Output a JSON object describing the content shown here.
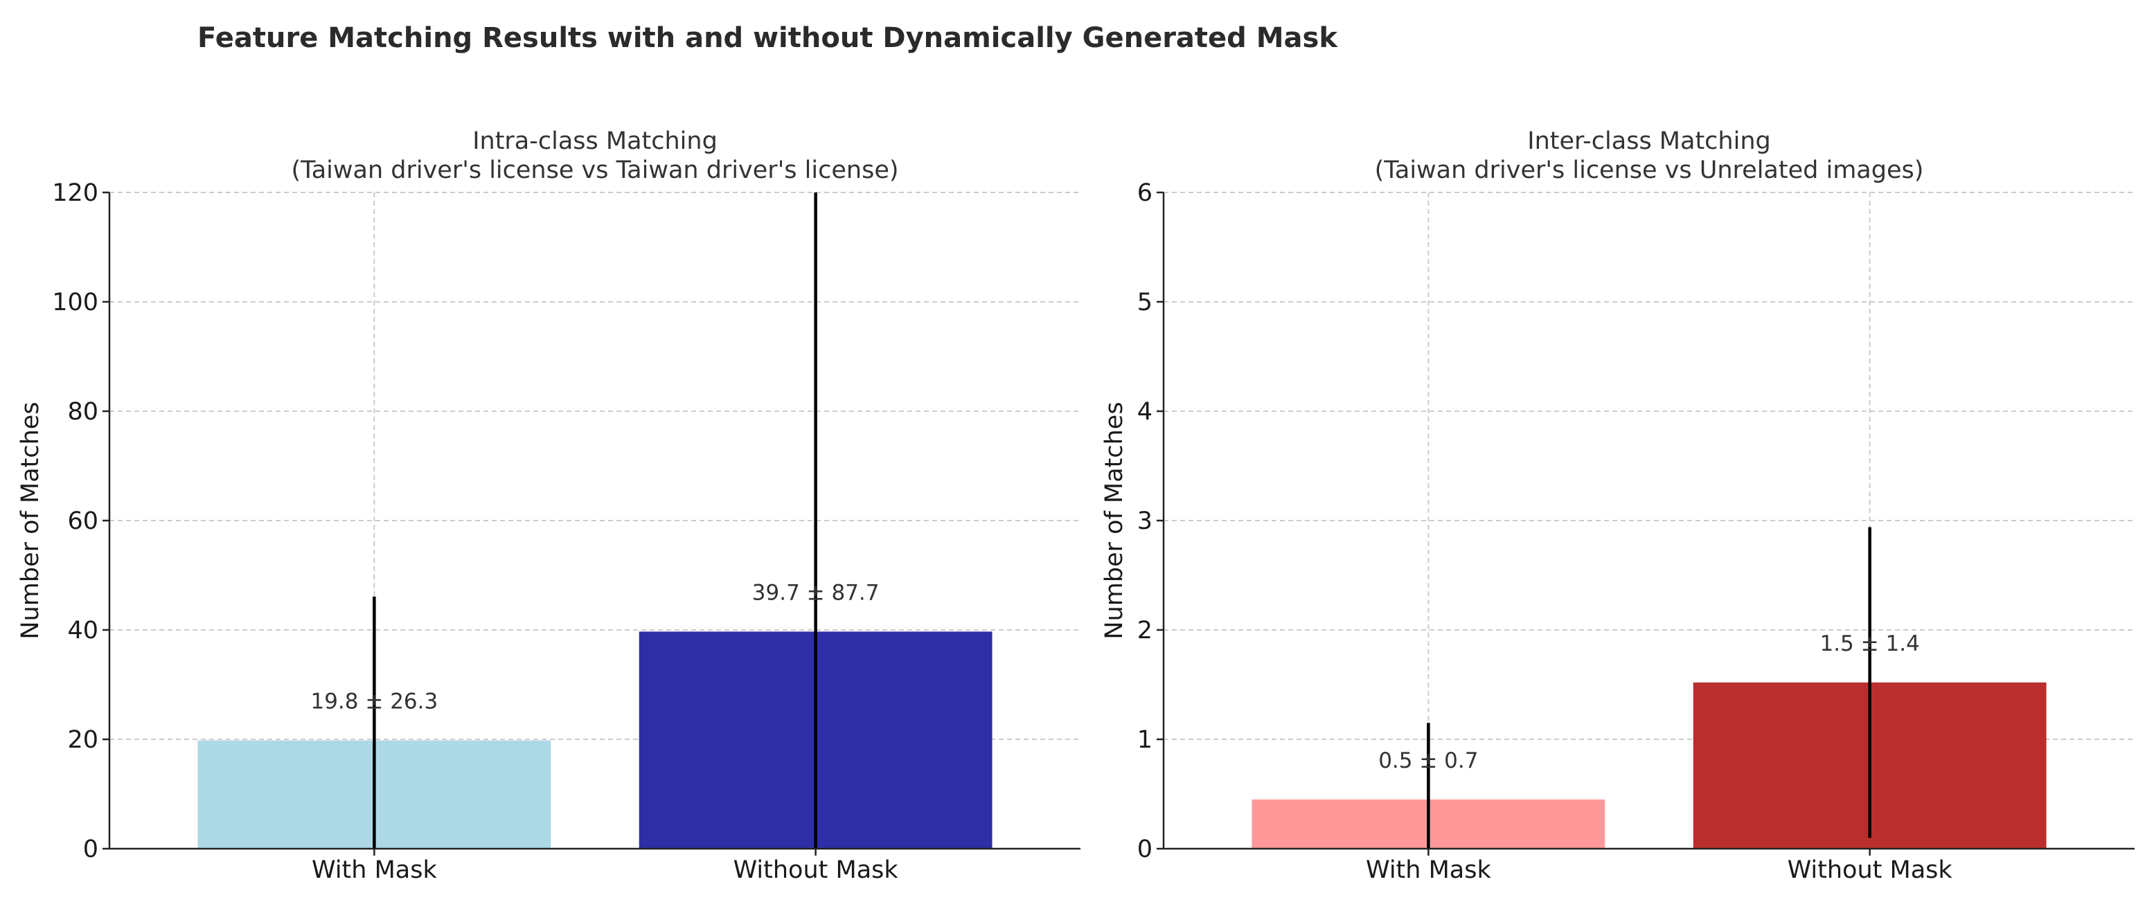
{
  "figure_title": "Feature Matching Results with and without Dynamically Generated Mask",
  "chart_data": [
    {
      "type": "bar",
      "title": "Intra-class Matching",
      "subtitle": "(Taiwan driver's license vs Taiwan driver's license)",
      "xlabel": "",
      "ylabel": "Number of Matches",
      "categories": [
        "With Mask",
        "Without Mask"
      ],
      "values": [
        19.8,
        39.7
      ],
      "errors": [
        26.3,
        87.7
      ],
      "labels": [
        "19.8 ± 26.3",
        "39.7 ± 87.7"
      ],
      "colors": [
        "#add8e6",
        "#2e2ea6"
      ],
      "ylim": [
        0,
        120
      ],
      "yticks": [
        0,
        20,
        40,
        60,
        80,
        100,
        120
      ],
      "grid": true
    },
    {
      "type": "bar",
      "title": "Inter-class Matching",
      "subtitle": "(Taiwan driver's license vs Unrelated images)",
      "xlabel": "",
      "ylabel": "Number of Matches",
      "categories": [
        "With Mask",
        "Without Mask"
      ],
      "values": [
        0.45,
        1.52
      ],
      "errors": [
        0.7,
        1.42
      ],
      "labels": [
        "0.5 ± 0.7",
        "1.5 ± 1.4"
      ],
      "colors": [
        "#ff9999",
        "#bb2e2e"
      ],
      "ylim": [
        0,
        6
      ],
      "yticks": [
        0,
        1,
        2,
        3,
        4,
        5,
        6
      ],
      "grid": true
    }
  ]
}
